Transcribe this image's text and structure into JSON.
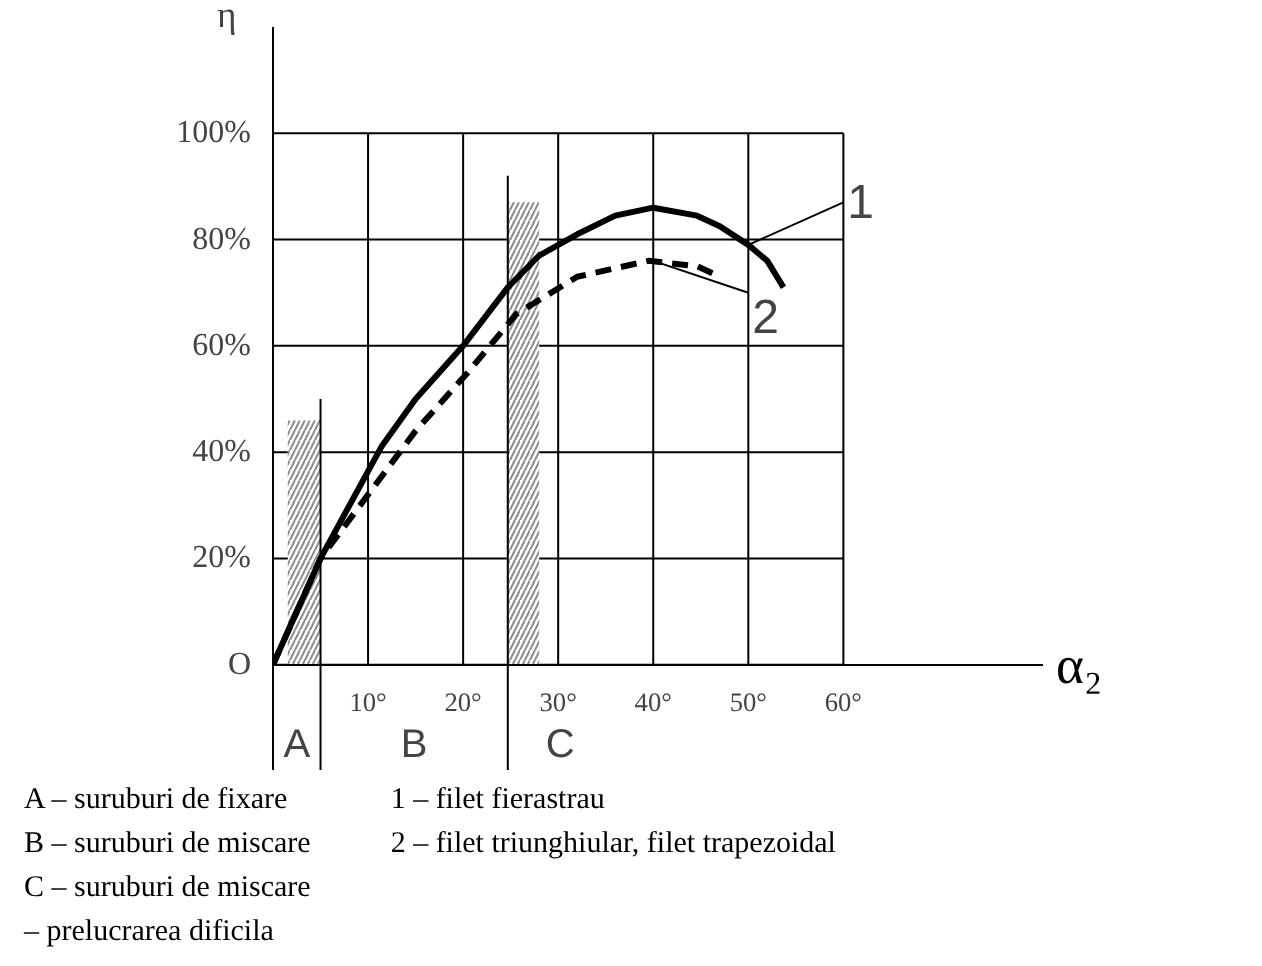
{
  "chart_data": {
    "type": "line",
    "xlabel": "α₂",
    "ylabel": "η",
    "xlim": [
      0,
      81
    ],
    "ylim": [
      -20,
      120
    ],
    "xticks": [
      {
        "value": 10,
        "label": "10°"
      },
      {
        "value": 20,
        "label": "20°"
      },
      {
        "value": 30,
        "label": "30°"
      },
      {
        "value": 40,
        "label": "40°"
      },
      {
        "value": 50,
        "label": "50°"
      },
      {
        "value": 60,
        "label": "60°"
      }
    ],
    "yticks": [
      {
        "value": 0,
        "label": "O"
      },
      {
        "value": 20,
        "label": "20%"
      },
      {
        "value": 40,
        "label": "40%"
      },
      {
        "value": 60,
        "label": "60%"
      },
      {
        "value": 80,
        "label": "80%"
      },
      {
        "value": 100,
        "label": "100%"
      }
    ],
    "grid": true,
    "marker": "none",
    "series": [
      {
        "type": "bar",
        "color": "#8c8c8c",
        "x": [
          3.25,
          26.3
        ],
        "values": [
          46,
          87
        ]
      },
      {
        "color": "#000000",
        "line_style": "solid",
        "x": [
          5,
          5
        ],
        "values": [
          -20,
          50
        ]
      },
      {
        "color": "#000000",
        "line_style": "solid",
        "x": [
          24.7,
          24.7
        ],
        "values": [
          -20,
          92
        ]
      },
      {
        "color": "#000000",
        "line_style": "solid",
        "x": [
          0,
          5,
          11.4,
          15,
          20,
          24.7,
          28,
          32,
          36,
          40,
          44.6,
          47,
          50,
          52,
          53.7
        ],
        "values": [
          0,
          20,
          41,
          50,
          60,
          71,
          77,
          81,
          84.5,
          86,
          84.5,
          82.5,
          79,
          76,
          71
        ]
      },
      {
        "color": "#000000",
        "line_style": "dashed",
        "x": [
          0,
          5,
          10,
          15,
          20.5,
          25.6,
          32,
          39.5,
          44.6,
          47
        ],
        "values": [
          0,
          20,
          32,
          44,
          55,
          66,
          73,
          76,
          75,
          73
        ]
      }
    ],
    "annotations": [
      {
        "text": "1",
        "x": 50,
        "y": 79
      },
      {
        "text": "2",
        "x": 40,
        "y": 76
      },
      "A",
      "B",
      "C",
      "A – suruburi de fixare",
      "B – suruburi de miscare",
      "C – suruburi de miscare",
      "– prelucrarea dificila",
      "1 – filet fierastrau",
      "2 – filet triunghiular, filet trapezoidal"
    ]
  }
}
